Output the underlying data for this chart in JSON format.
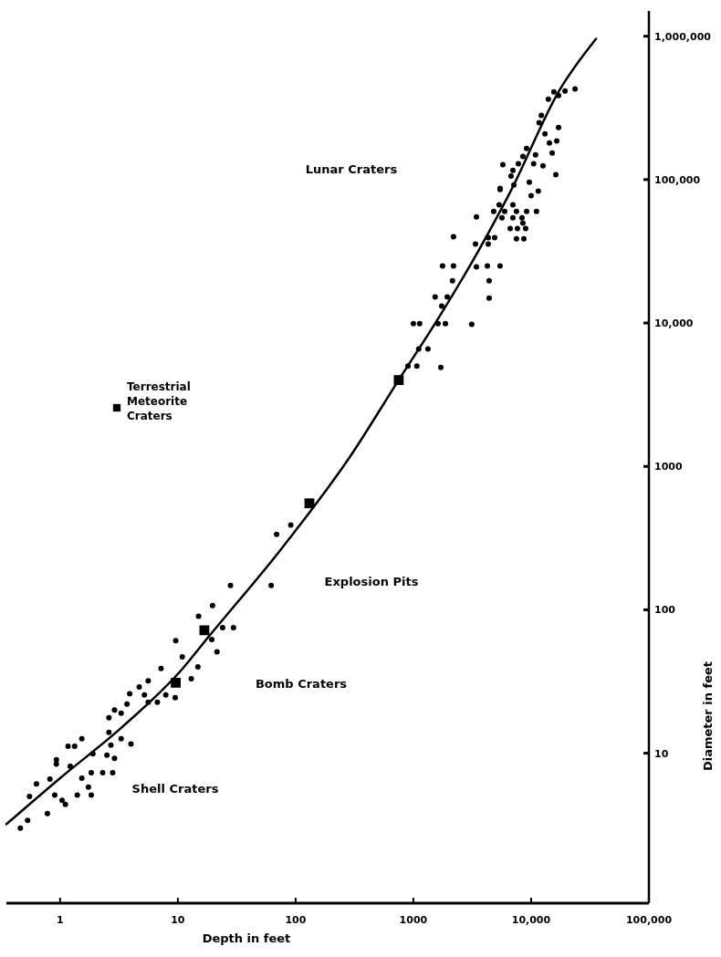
{
  "chart_data": {
    "type": "scatter",
    "xlabel": "Depth in feet",
    "ylabel": "Diameter in feet",
    "log": "xy",
    "grid": false,
    "legend": "left",
    "xlim": [
      0.35,
      100000
    ],
    "ylim": [
      0.9,
      1500000
    ],
    "xticks": [
      1,
      10,
      100,
      1000,
      {
        "value": 10000,
        "label": "10,000"
      },
      {
        "value": 100000,
        "label": "100,000"
      }
    ],
    "yticks": [
      10,
      100,
      1000,
      {
        "value": 10000,
        "label": "10,000"
      },
      {
        "value": 100000,
        "label": "100,000"
      },
      {
        "value": 1000000,
        "label": "1,000,000"
      }
    ],
    "annotations": [
      "Lunar Craters",
      "Explosion Pits",
      "Bomb Craters",
      "Shell Craters"
    ],
    "series": [
      {
        "color": "#000000",
        "marker": "circle",
        "x": [
          0.46,
          0.53,
          0.55,
          0.63,
          0.78,
          0.82,
          0.9,
          0.93,
          0.93,
          1.04,
          1.11,
          1.17,
          1.33,
          1.22,
          1.4,
          1.53,
          1.53,
          1.74,
          1.84,
          1.84,
          1.9,
          2.3,
          2.8,
          2.5,
          2.9,
          2.6,
          2.7,
          3.3,
          4.0,
          2.6,
          2.9,
          3.3,
          3.7,
          3.9,
          4.7,
          5.2,
          5.6,
          5.6,
          6.7,
          7.2,
          7.9,
          9.5,
          10.9,
          13,
          14.8,
          21.5,
          9.6,
          15,
          19.7,
          24,
          29.7,
          28,
          62,
          69,
          91,
          19.4,
          1710,
          1070,
          900,
          1330,
          1110,
          3130,
          1000,
          1130,
          1620,
          1870,
          1740,
          1530,
          1940,
          2150,
          1770,
          2190,
          3430,
          4250,
          5450,
          4400,
          4400,
          2190,
          3370,
          4320,
          4320,
          4900,
          3430,
          5450,
          4810,
          5960,
          5650,
          7000,
          7500,
          9150,
          11100,
          8360,
          8510,
          6640,
          7650,
          8980,
          7500,
          8670,
          7000,
          5350,
          15600,
          19400,
          23600,
          14000,
          17100,
          12200,
          17100,
          13100,
          16500,
          14300,
          11700,
          9150,
          10900,
          15100,
          8510,
          10500,
          12600,
          5750,
          16200,
          7790,
          7000,
          7130,
          9650,
          11500,
          10000,
          6750,
          5450
        ],
        "values": [
          3.0,
          3.4,
          5.0,
          6.1,
          3.8,
          6.6,
          5.1,
          9.0,
          8.4,
          4.7,
          4.4,
          11.2,
          11.2,
          8.1,
          5.1,
          12.6,
          6.7,
          5.8,
          5.1,
          7.3,
          9.9,
          7.3,
          7.3,
          9.7,
          9.2,
          14,
          11.4,
          12.6,
          11.6,
          17.7,
          20,
          19,
          22,
          26,
          29,
          25.5,
          32,
          22.7,
          22.7,
          39,
          25.5,
          24.4,
          47,
          33,
          40,
          51,
          61,
          90,
          107,
          75,
          75,
          148,
          148,
          336,
          390,
          62,
          4900,
          5000,
          5000,
          6600,
          6600,
          9800,
          9900,
          9900,
          9900,
          9900,
          13100,
          15200,
          15200,
          19700,
          25000,
          25000,
          24600,
          25000,
          25000,
          19700,
          14900,
          40000,
          35500,
          35500,
          39300,
          39300,
          55000,
          86700,
          60100,
          60100,
          54200,
          54200,
          60100,
          60100,
          60100,
          54200,
          49700,
          45500,
          45500,
          45500,
          38700,
          38700,
          66600,
          66600,
          409000,
          415000,
          428000,
          364000,
          386000,
          280000,
          231000,
          208000,
          186000,
          180000,
          249000,
          165000,
          149000,
          153000,
          145000,
          129000,
          125000,
          127000,
          108000,
          129000,
          116000,
          91800,
          95900,
          83000,
          77100,
          106000,
          85300
        ]
      },
      {
        "type": "scatter",
        "name": "Terrestrial Meteorite Craters",
        "color": "#000000",
        "marker": "square",
        "x": [
          9.6,
          16.8,
          131,
          751
        ],
        "values": [
          31,
          72,
          553,
          4000
        ]
      },
      {
        "type": "line",
        "color": "#000000",
        "marker": "none",
        "line_style": "solid",
        "x": [
          0.35,
          1.0,
          3.3,
          11,
          17.7,
          74,
          290,
          750,
          1620,
          3500,
          6700,
          17400,
          35600
        ],
        "values": [
          3.2,
          6.7,
          15,
          39,
          63,
          260,
          1170,
          4000,
          10700,
          31000,
          83000,
          420000,
          960000
        ]
      }
    ]
  }
}
